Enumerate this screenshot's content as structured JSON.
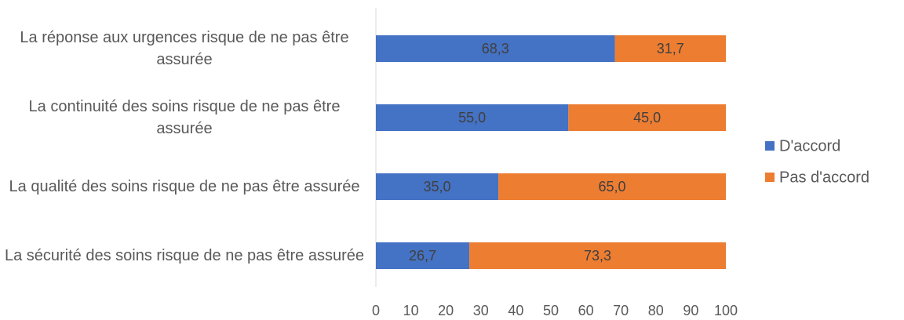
{
  "chart_data": {
    "type": "stacked_barh",
    "categories": [
      "La réponse aux urgences risque de ne pas être assurée",
      "La continuité des soins risque de ne pas être assurée",
      "La qualité des soins risque de ne pas être assurée",
      "La sécurité des soins risque de ne pas être assurée"
    ],
    "series": [
      {
        "name": "D'accord",
        "color": "#4472c4",
        "values": [
          68.3,
          55.0,
          35.0,
          26.7
        ],
        "value_labels": [
          "68,3",
          "55,0",
          "35,0",
          "26,7"
        ]
      },
      {
        "name": "Pas d'accord",
        "color": "#ed7d31",
        "values": [
          31.7,
          45.0,
          65.0,
          73.3
        ],
        "value_labels": [
          "31,7",
          "45,0",
          "65,0",
          "73,3"
        ]
      }
    ],
    "xlim": [
      0,
      100
    ],
    "xticks": [
      0,
      10,
      20,
      30,
      40,
      50,
      60,
      70,
      80,
      90,
      100
    ],
    "grid": false,
    "legend": "right"
  }
}
